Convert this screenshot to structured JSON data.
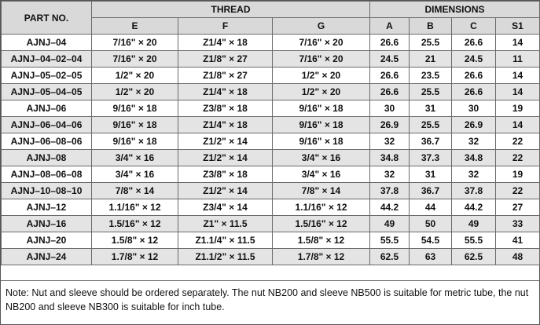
{
  "table": {
    "part_header": "PART NO.",
    "thread_header": "THREAD",
    "dimensions_header": "DIMENSIONS",
    "sub_headers": [
      "E",
      "F",
      "G",
      "A",
      "B",
      "C",
      "S1"
    ],
    "rows": [
      [
        "AJNJ–04",
        "7/16\" × 20",
        "Z1/4\" × 18",
        "7/16\" × 20",
        "26.6",
        "25.5",
        "26.6",
        "14"
      ],
      [
        "AJNJ–04–02–04",
        "7/16\" × 20",
        "Z1/8\" × 27",
        "7/16\" × 20",
        "24.5",
        "21",
        "24.5",
        "11"
      ],
      [
        "AJNJ–05–02–05",
        "1/2\" × 20",
        "Z1/8\" × 27",
        "1/2\" × 20",
        "26.6",
        "23.5",
        "26.6",
        "14"
      ],
      [
        "AJNJ–05–04–05",
        "1/2\" × 20",
        "Z1/4\" × 18",
        "1/2\" × 20",
        "26.6",
        "25.5",
        "26.6",
        "14"
      ],
      [
        "AJNJ–06",
        "9/16\" × 18",
        "Z3/8\" × 18",
        "9/16\" × 18",
        "30",
        "31",
        "30",
        "19"
      ],
      [
        "AJNJ–06–04–06",
        "9/16\" × 18",
        "Z1/4\" × 18",
        "9/16\" × 18",
        "26.9",
        "25.5",
        "26.9",
        "14"
      ],
      [
        "AJNJ–06–08–06",
        "9/16\" × 18",
        "Z1/2\" × 14",
        "9/16\" × 18",
        "32",
        "36.7",
        "32",
        "22"
      ],
      [
        "AJNJ–08",
        "3/4\" × 16",
        "Z1/2\" × 14",
        "3/4\" × 16",
        "34.8",
        "37.3",
        "34.8",
        "22"
      ],
      [
        "AJNJ–08–06–08",
        "3/4\" × 16",
        "Z3/8\" × 18",
        "3/4\" × 16",
        "32",
        "31",
        "32",
        "19"
      ],
      [
        "AJNJ–10–08–10",
        "7/8\" × 14",
        "Z1/2\" × 14",
        "7/8\" × 14",
        "37.8",
        "36.7",
        "37.8",
        "22"
      ],
      [
        "AJNJ–12",
        "1.1/16\" × 12",
        "Z3/4\" × 14",
        "1.1/16\" × 12",
        "44.2",
        "44",
        "44.2",
        "27"
      ],
      [
        "AJNJ–16",
        "1.5/16\" × 12",
        "Z1\" × 11.5",
        "1.5/16\" × 12",
        "49",
        "50",
        "49",
        "33"
      ],
      [
        "AJNJ–20",
        "1.5/8\" × 12",
        "Z1.1/4\" × 11.5",
        "1.5/8\" × 12",
        "55.5",
        "54.5",
        "55.5",
        "41"
      ],
      [
        "AJNJ–24",
        "1.7/8\" × 12",
        "Z1.1/2\" × 11.5",
        "1.7/8\" × 12",
        "62.5",
        "63",
        "62.5",
        "48"
      ]
    ]
  },
  "note": "Note: Nut and sleeve should be ordered separately. The nut NB200 and sleeve NB500 is suitable for metric tube, the nut NB200 and sleeve NB300 is suitable for inch tube."
}
